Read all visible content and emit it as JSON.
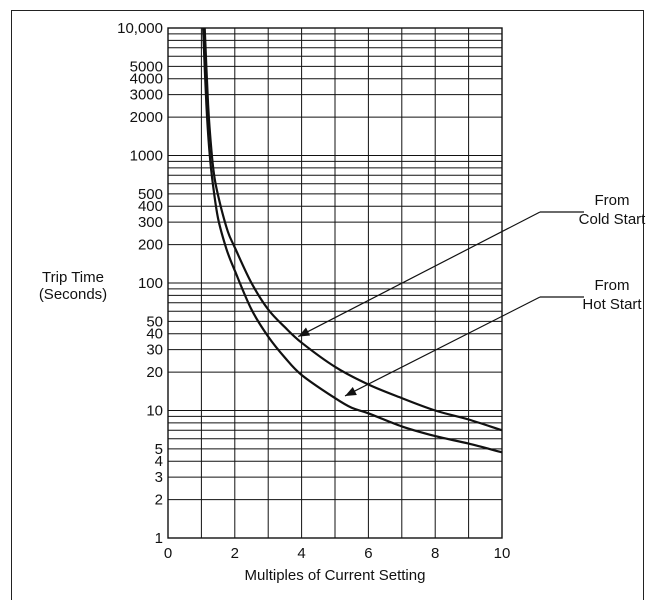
{
  "chart_data": {
    "type": "line",
    "title": "",
    "xlabel": "Multiples of Current Setting",
    "ylabel": "Trip Time\n(Seconds)",
    "xlim": [
      0,
      10
    ],
    "ylim": [
      1,
      10000
    ],
    "yscale": "log",
    "grid": true,
    "x_ticks": [
      "0",
      "2",
      "4",
      "6",
      "8",
      "10"
    ],
    "y_ticks": [
      {
        "v": 10000,
        "t": "10,000"
      },
      {
        "v": 5000,
        "t": "5000"
      },
      {
        "v": 4000,
        "t": "4000"
      },
      {
        "v": 3000,
        "t": "3000"
      },
      {
        "v": 2000,
        "t": "2000"
      },
      {
        "v": 1000,
        "t": "1000"
      },
      {
        "v": 500,
        "t": "500"
      },
      {
        "v": 400,
        "t": "400"
      },
      {
        "v": 300,
        "t": "300"
      },
      {
        "v": 200,
        "t": "200"
      },
      {
        "v": 100,
        "t": "100"
      },
      {
        "v": 50,
        "t": "50"
      },
      {
        "v": 40,
        "t": "40"
      },
      {
        "v": 30,
        "t": "30"
      },
      {
        "v": 20,
        "t": "20"
      },
      {
        "v": 10,
        "t": "10"
      },
      {
        "v": 5,
        "t": "5"
      },
      {
        "v": 4,
        "t": "4"
      },
      {
        "v": 3,
        "t": "3"
      },
      {
        "v": 2,
        "t": "2"
      },
      {
        "v": 1,
        "t": "1"
      }
    ],
    "series": [
      {
        "name": "From Cold Start",
        "x": [
          1.1,
          1.2,
          1.3,
          1.4,
          1.6,
          1.8,
          2.0,
          2.5,
          3.0,
          3.5,
          4.0,
          5.0,
          6.0,
          7.0,
          8.0,
          9.0,
          10.0
        ],
        "y": [
          10000,
          2500,
          1100,
          650,
          380,
          250,
          190,
          100,
          62,
          45,
          34,
          22,
          16,
          12.5,
          10,
          8.5,
          7
        ]
      },
      {
        "name": "From Hot Start",
        "x": [
          1.05,
          1.15,
          1.25,
          1.35,
          1.5,
          1.75,
          2.0,
          2.5,
          3.0,
          3.5,
          4.0,
          5.0,
          5.5,
          6.0,
          7.0,
          8.0,
          9.0,
          10.0
        ],
        "y": [
          10000,
          2500,
          1000,
          580,
          320,
          185,
          125,
          62,
          38,
          26,
          19,
          12.5,
          10.5,
          9.5,
          7.5,
          6.3,
          5.5,
          4.7
        ]
      }
    ],
    "annotations": [
      {
        "text": "From\nCold Start",
        "series": 0,
        "at_x": 3.9,
        "at_y": 38
      },
      {
        "text": "From\nHot Start",
        "series": 1,
        "at_x": 5.3,
        "at_y": 13
      }
    ]
  }
}
